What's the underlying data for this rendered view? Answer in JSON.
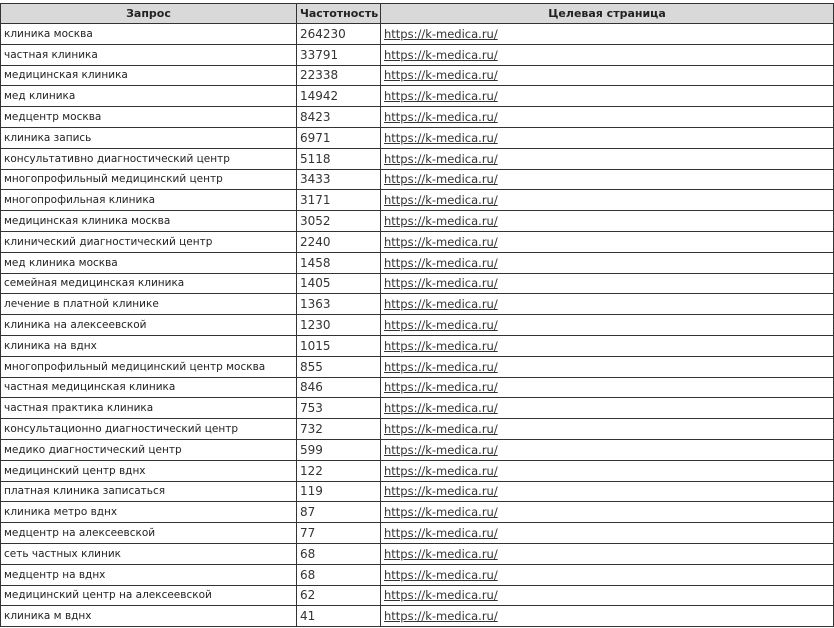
{
  "headers": {
    "query": "Запрос",
    "frequency": "Частотность",
    "target": "Целевая страница"
  },
  "rows": [
    {
      "query": "клиника москва",
      "frequency": "264230",
      "url": "https://k-medica.ru/"
    },
    {
      "query": "частная клиника",
      "frequency": "33791",
      "url": "https://k-medica.ru/"
    },
    {
      "query": "медицинская клиника",
      "frequency": "22338",
      "url": "https://k-medica.ru/"
    },
    {
      "query": "мед клиника",
      "frequency": "14942",
      "url": "https://k-medica.ru/"
    },
    {
      "query": "медцентр москва",
      "frequency": "8423",
      "url": "https://k-medica.ru/"
    },
    {
      "query": "клиника запись",
      "frequency": "6971",
      "url": "https://k-medica.ru/"
    },
    {
      "query": "консультативно диагностический центр",
      "frequency": "5118",
      "url": "https://k-medica.ru/"
    },
    {
      "query": "многопрофильный медицинский центр",
      "frequency": "3433",
      "url": "https://k-medica.ru/"
    },
    {
      "query": "многопрофильная клиника",
      "frequency": "3171",
      "url": "https://k-medica.ru/"
    },
    {
      "query": "медицинская клиника москва",
      "frequency": "3052",
      "url": "https://k-medica.ru/"
    },
    {
      "query": "клинический диагностический центр",
      "frequency": "2240",
      "url": "https://k-medica.ru/"
    },
    {
      "query": "мед клиника москва",
      "frequency": "1458",
      "url": "https://k-medica.ru/"
    },
    {
      "query": "семейная медицинская клиника",
      "frequency": "1405",
      "url": "https://k-medica.ru/"
    },
    {
      "query": "лечение в платной клинике",
      "frequency": "1363",
      "url": "https://k-medica.ru/"
    },
    {
      "query": "клиника на алексеевской",
      "frequency": "1230",
      "url": "https://k-medica.ru/"
    },
    {
      "query": "клиника на вднх",
      "frequency": "1015",
      "url": "https://k-medica.ru/"
    },
    {
      "query": "многопрофильный медицинский центр москва",
      "frequency": "855",
      "url": "https://k-medica.ru/"
    },
    {
      "query": "частная медицинская клиника",
      "frequency": "846",
      "url": "https://k-medica.ru/"
    },
    {
      "query": "частная практика клиника",
      "frequency": "753",
      "url": "https://k-medica.ru/"
    },
    {
      "query": "консультационно диагностический центр",
      "frequency": "732",
      "url": "https://k-medica.ru/"
    },
    {
      "query": "медико диагностический центр",
      "frequency": "599",
      "url": "https://k-medica.ru/"
    },
    {
      "query": "медицинский центр вднх",
      "frequency": "122",
      "url": "https://k-medica.ru/"
    },
    {
      "query": "платная клиника записаться",
      "frequency": "119",
      "url": "https://k-medica.ru/"
    },
    {
      "query": "клиника метро вднх",
      "frequency": "87",
      "url": "https://k-medica.ru/"
    },
    {
      "query": "медцентр на алексеевской",
      "frequency": "77",
      "url": "https://k-medica.ru/"
    },
    {
      "query": "сеть частных клиник",
      "frequency": "68",
      "url": "https://k-medica.ru/"
    },
    {
      "query": "медцентр на вднх",
      "frequency": "68",
      "url": "https://k-medica.ru/"
    },
    {
      "query": "медицинский центр на алексеевской",
      "frequency": "62",
      "url": "https://k-medica.ru/"
    },
    {
      "query": "клиника м вднх",
      "frequency": "41",
      "url": "https://k-medica.ru/"
    }
  ]
}
